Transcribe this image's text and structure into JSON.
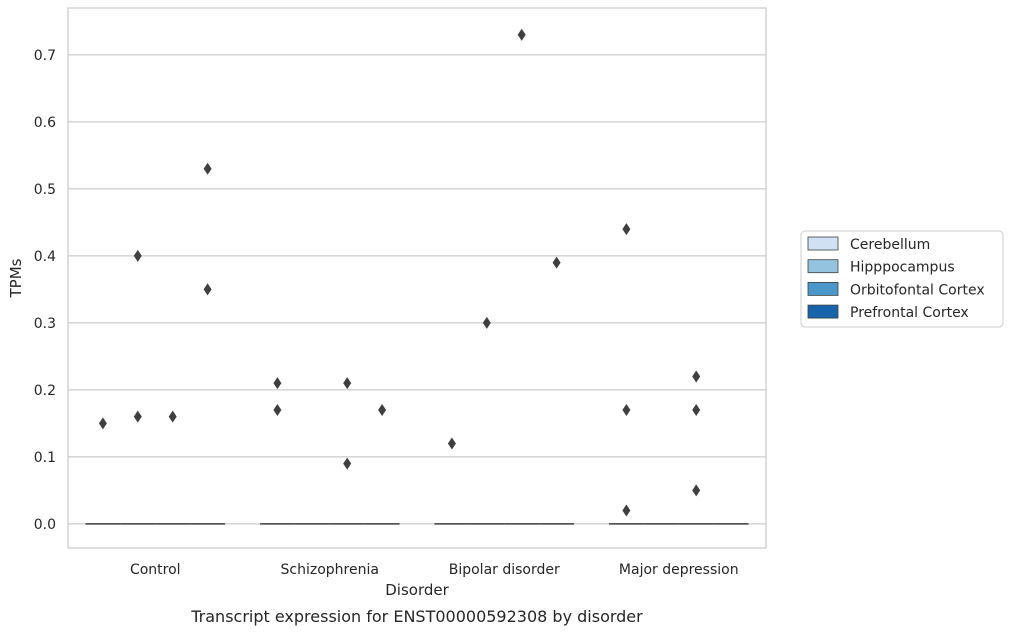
{
  "chart_data": {
    "type": "box",
    "title": "",
    "xlabel": "Disorder",
    "ylabel": "TPMs",
    "caption": "Transcript expression for ENST00000592308 by disorder",
    "categories": [
      "Control",
      "Schizophrenia",
      "Bipolar disorder",
      "Major depression"
    ],
    "ylim": [
      -0.036,
      0.77
    ],
    "yticks": [
      0.0,
      0.1,
      0.2,
      0.3,
      0.4,
      0.5,
      0.6,
      0.7
    ],
    "ytick_labels": [
      "0.0",
      "0.1",
      "0.2",
      "0.3",
      "0.4",
      "0.5",
      "0.6",
      "0.7"
    ],
    "grid": "horizontal",
    "legend_position": "right",
    "series": [
      {
        "name": "Cerebellum",
        "color": "#cfe1f2",
        "median": [
          0,
          0,
          0,
          0
        ],
        "outliers": [
          [
            0.15
          ],
          [
            0.17,
            0.21
          ],
          [
            0.12
          ],
          [
            0.44,
            0.17,
            0.02
          ]
        ]
      },
      {
        "name": "Hipppocampus",
        "color": "#93c3df",
        "median": [
          0,
          0,
          0,
          0
        ],
        "outliers": [
          [
            0.16,
            0.4
          ],
          [],
          [
            0.3
          ],
          []
        ]
      },
      {
        "name": "Orbitofontal Cortex",
        "color": "#4b97c9",
        "median": [
          0,
          0,
          0,
          0
        ],
        "outliers": [
          [
            0.16
          ],
          [
            0.21,
            0.09
          ],
          [
            0.73
          ],
          [
            0.17,
            0.22,
            0.05
          ]
        ]
      },
      {
        "name": "Prefrontal Cortex",
        "color": "#1764ab",
        "median": [
          0,
          0,
          0,
          0
        ],
        "outliers": [
          [
            0.53,
            0.35
          ],
          [
            0.17
          ],
          [
            0.39
          ],
          []
        ]
      }
    ]
  }
}
